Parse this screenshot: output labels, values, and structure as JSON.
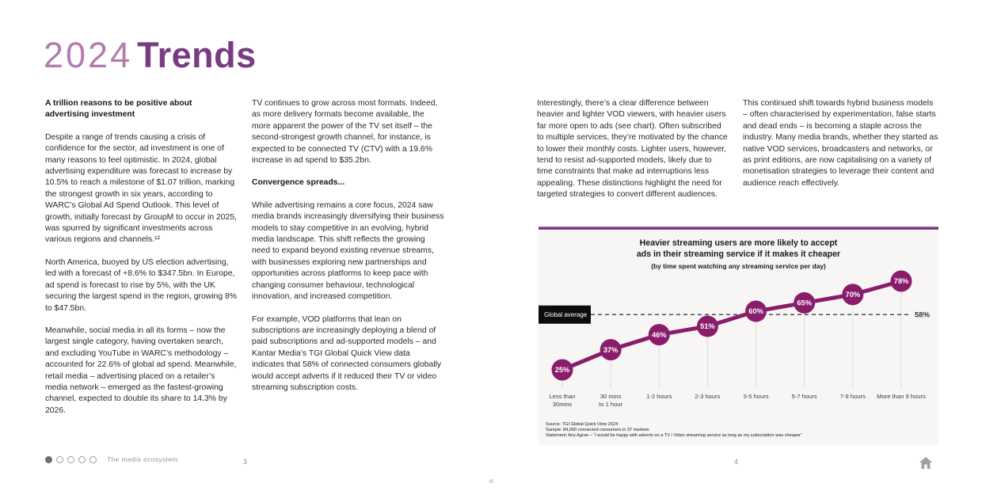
{
  "page": {
    "title_year": "2024",
    "title_word": "Trends",
    "left_page_number": "3",
    "right_page_number": "4"
  },
  "footer": {
    "dots_total": 5,
    "dots_active": 0,
    "label": "The media ecosystem"
  },
  "columns": [
    {
      "heading": "A trillion reasons to be positive about advertising investment",
      "paragraphs": [
        "Despite a range of trends causing a crisis of confidence for the sector, ad investment is one of many reasons to feel optimistic. In 2024, global advertising expenditure was forecast to increase by 10.5% to reach a milestone of $1.07 trillion, marking the strongest growth in six years, according to WARC’s Global Ad Spend Outlook. This level of growth, initially forecast by GroupM to occur in 2025, was spurred by significant investments across various regions and channels.¹²",
        "North America, buoyed by US election advertising, led with a forecast of +8.6% to $347.5bn. In Europe, ad spend is forecast to rise by 5%, with the UK securing the largest spend in the region, growing 8% to $47.5bn.",
        "Meanwhile, social media in all its forms – now the largest single category, having overtaken search, and excluding YouTube in WARC’s methodology – accounted for 22.6% of global ad spend. Meanwhile, retail media – advertising placed on a retailer’s media network – emerged as the fastest-growing channel, expected to double its share to 14.3% by 2026."
      ]
    },
    {
      "heading": "Convergence spreads...",
      "paragraphs": [
        "TV continues to grow across most formats. Indeed, as more delivery formats become available, the more apparent the power of the TV set itself – the second-strongest growth channel, for instance, is expected to be connected TV (CTV) with a 19.6% increase in ad spend to $35.2bn.",
        "While advertising remains a core focus, 2024 saw media brands increasingly diversifying their business models to stay competitive in an evolving, hybrid media landscape. This shift reflects the growing need to expand beyond existing revenue streams, with businesses exploring new partnerships and opportunities across platforms to keep pace with changing consumer behaviour, technological innovation, and increased competition.",
        "For example, VOD platforms that lean on subscriptions are increasingly deploying a blend of paid subscriptions and ad-supported models – and Kantar Media’s TGI Global Quick View data indicates that 58% of connected consumers globally would accept adverts if it reduced their TV or video streaming subscription costs."
      ]
    },
    {
      "heading": "",
      "paragraphs": [
        "Interestingly, there’s a clear difference between heavier and lighter VOD viewers, with heavier users far more open to ads (see chart). Often subscribed to multiple services, they’re motivated by the chance to lower their monthly costs. Lighter users, however, tend to resist ad-supported models, likely due to time constraints that make ad interruptions less appealing. These distinctions highlight the need for targeted strategies to convert different audiences."
      ]
    },
    {
      "heading": "",
      "paragraphs": [
        "This continued shift towards hybrid business models – often characterised by experimentation, false starts and dead ends – is becoming a staple across the industry. Many media brands, whether they started as native VOD services, broadcasters and networks, or as print editions, are now capitalising on a variety of monetisation strategies to leverage their content and audience reach effectively."
      ]
    }
  ],
  "chart_data": {
    "type": "line",
    "title": "Heavier streaming users are more likely to accept\nads in their streaming service if it makes it cheaper",
    "subtitle": "(by time spent watching any streaming service per day)",
    "categories": [
      "Less than\n30mins",
      "30 mins\nto 1 hour",
      "1-2 hours",
      "2-3 hours",
      "3-5 hours",
      "5-7 hours",
      "7-9 hours",
      "More than 9 hours"
    ],
    "values": [
      25,
      37,
      46,
      51,
      60,
      65,
      70,
      78
    ],
    "value_labels": [
      "25%",
      "37%",
      "46%",
      "51%",
      "60%",
      "65%",
      "70%",
      "78%"
    ],
    "reference_line": {
      "label": "Global average",
      "value": 58,
      "value_label": "58%"
    },
    "ylim": [
      0,
      100
    ],
    "xlabel": "",
    "ylabel": "",
    "legend": "none",
    "grid": "vertical-drop-lines",
    "colors": {
      "point": "#8a1c6c",
      "line": "#8a1c6c",
      "reference_dash": "#4d4d4d",
      "reference_box_bg": "#0c0c0c",
      "reference_box_text": "#ffffff",
      "accent_bar": "#6f2a74",
      "panel_bg": "#f7f6f5"
    },
    "source_lines": [
      "Source: TGI Global Quick View 2024",
      "Sample: 84,000 connected consumers in 37 markets",
      "Statement: Any Agree – “I would be happy with adverts on a TV / Video streaming service as long as my subscription was cheaper”"
    ]
  }
}
